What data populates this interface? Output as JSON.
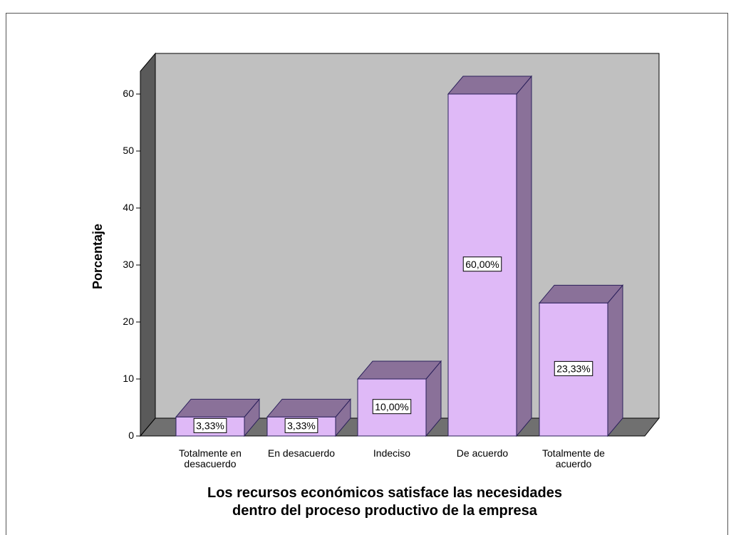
{
  "chart_data": {
    "type": "bar3d",
    "categories": [
      "Totalmente en\ndesacuerdo",
      "En desacuerdo",
      "Indeciso",
      "De acuerdo",
      "Totalmente de\nacuerdo"
    ],
    "values": [
      3.33,
      3.33,
      10,
      60,
      23.33
    ],
    "value_labels": [
      "3,33%",
      "3,33%",
      "10,00%",
      "60,00%",
      "23,33%"
    ],
    "color": "#dfb9f7",
    "side_color": "#8a7199",
    "ylabel": "Porcentaje",
    "xlabel": "Los recursos económicos satisface las necesidades\ndentro del proceso productivo de la empresa",
    "ylim": [
      0,
      64
    ],
    "yticks": [
      0,
      10,
      20,
      30,
      40,
      50,
      60
    ]
  }
}
